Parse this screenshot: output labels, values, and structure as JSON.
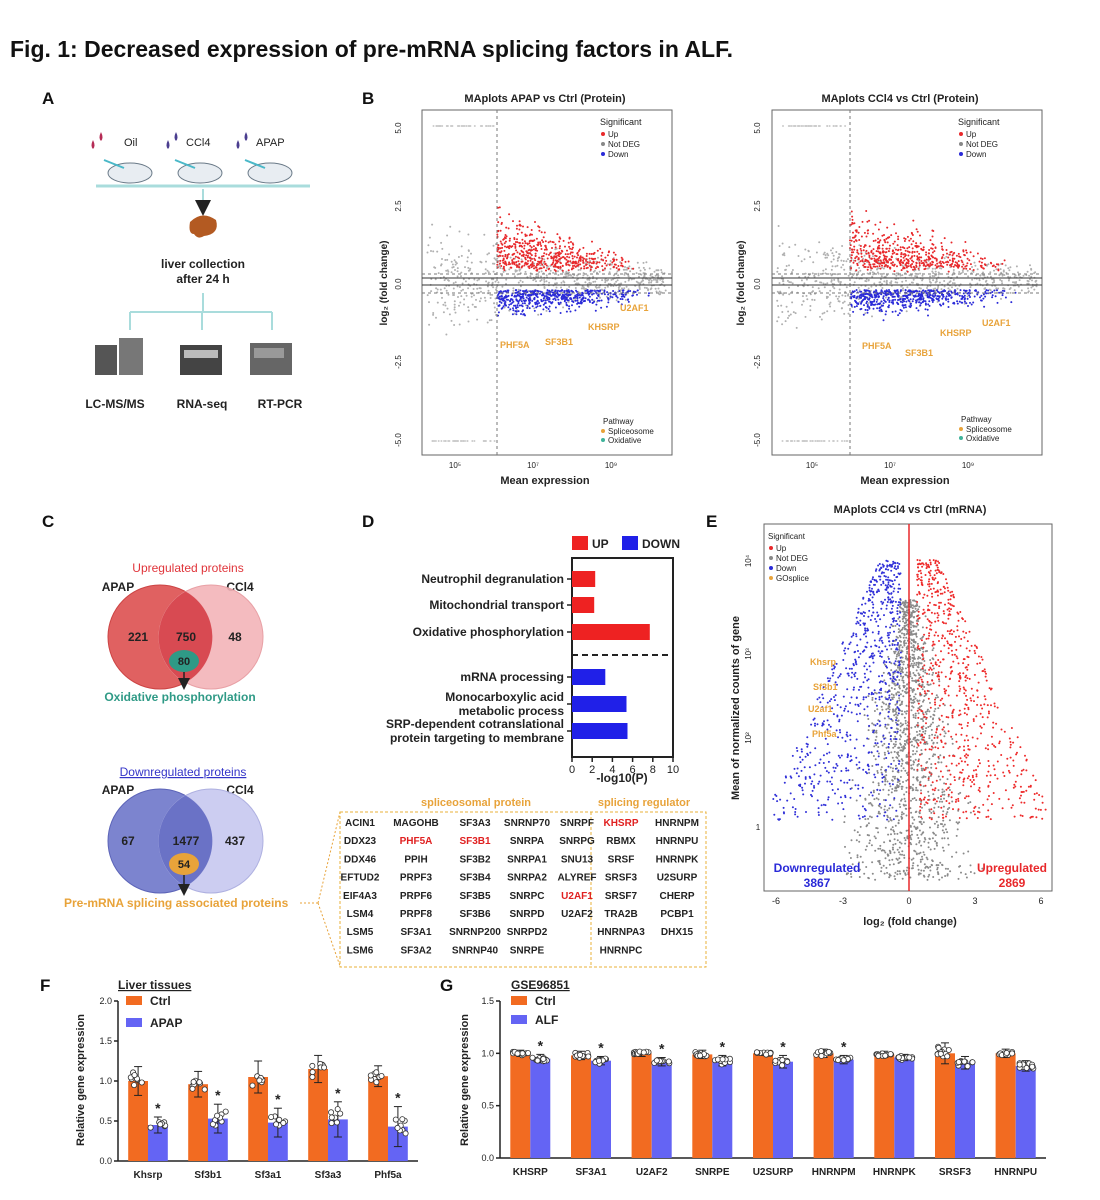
{
  "figure_title": "Fig. 1: Decreased expression of pre-mRNA splicing factors in ALF.",
  "panels": {
    "A": "A",
    "B": "B",
    "C": "C",
    "D": "D",
    "E": "E",
    "F": "F",
    "G": "G"
  },
  "panel_a": {
    "treatments": [
      "Oil",
      "CCl4",
      "APAP"
    ],
    "collection": [
      "liver collection",
      "after 24 h"
    ],
    "methods": [
      "LC-MS/MS",
      "RNA-seq",
      "RT-PCR"
    ]
  },
  "panel_b": {
    "plots": [
      {
        "title": "MAplots APAP vs Ctrl (Protein)",
        "genes": [
          "U2AF1",
          "KHSRP",
          "PHF5A",
          "SF3B1"
        ]
      },
      {
        "title": "MAplots CCl4 vs Ctrl (Protein)",
        "genes": [
          "U2AF1",
          "KHSRP",
          "PHF5A",
          "SF3B1"
        ]
      }
    ],
    "ylabel": "log₂ (fold change)",
    "xlabel": "Mean expression",
    "yticks": [
      "5.0",
      "2.5",
      "0.0",
      "-2.5",
      "-5.0"
    ],
    "xticks": [
      "10⁵",
      "10⁷",
      "10⁹"
    ],
    "legend_title": "Significant",
    "legend_items": [
      "Up",
      "Not DEG",
      "Down"
    ],
    "pathway_title": "Pathway",
    "pathway_items": [
      "Spliceosome",
      "Oxidative"
    ],
    "colors": {
      "up": "#e8282b",
      "down": "#2a2ad8",
      "notdeg": "#b0b0b0",
      "splice": "#e8a33a",
      "oxid": "#3fb39a"
    }
  },
  "panel_c": {
    "up": {
      "title": "Upregulated proteins",
      "left_label": "APAP",
      "right_label": "CCl4",
      "left": "221",
      "middle": "750",
      "right": "48",
      "sub": "80",
      "annotation": "Oxidative phosphorylation"
    },
    "down": {
      "title": "Downregulated proteins",
      "left_label": "APAP",
      "right_label": "CCl4",
      "left": "67",
      "middle": "1477",
      "right": "437",
      "sub": "54",
      "annotation": "Pre-mRNA splicing associated proteins"
    }
  },
  "chart_data": [
    {
      "type": "bar",
      "title": "",
      "legend": [
        "UP",
        "DOWN"
      ],
      "categories": [
        "Neutrophil degranulation",
        "Mitochondrial transport",
        "Oxidative phosphorylation",
        "mRNA processing",
        "Monocarboxylic acid metabolic process",
        "SRP-dependent cotranslational protein targeting to membrane"
      ],
      "values": [
        2.3,
        2.2,
        7.7,
        3.3,
        5.4,
        5.5
      ],
      "groups": [
        "UP",
        "UP",
        "UP",
        "DOWN",
        "DOWN",
        "DOWN"
      ],
      "xlabel": "-log10(P)",
      "xticks": [
        "0",
        "2",
        "4",
        "6",
        "8",
        "10"
      ],
      "xlim": [
        0,
        10
      ]
    },
    {
      "type": "bar",
      "title": "Liver tissues",
      "categories": [
        "Khsrp",
        "Sf3b1",
        "Sf3a1",
        "Sf3a3",
        "Phf5a"
      ],
      "series": [
        {
          "name": "Ctrl",
          "values": [
            1.0,
            0.96,
            1.05,
            1.15,
            1.06
          ]
        },
        {
          "name": "APAP",
          "values": [
            0.45,
            0.53,
            0.48,
            0.52,
            0.43
          ]
        }
      ],
      "errors": [
        {
          "name": "Ctrl",
          "values": [
            0.18,
            0.16,
            0.2,
            0.17,
            0.13
          ]
        },
        {
          "name": "APAP",
          "values": [
            0.1,
            0.18,
            0.18,
            0.22,
            0.25
          ]
        }
      ],
      "significance": [
        "*",
        "*",
        "*",
        "*",
        "*"
      ],
      "ylabel": "Relative gene expression",
      "yticks": [
        "0.0",
        "0.5",
        "1.0",
        "1.5",
        "2.0"
      ],
      "ylim": [
        0,
        2.0
      ]
    },
    {
      "type": "bar",
      "title": "GSE96851",
      "categories": [
        "KHSRP",
        "SF3A1",
        "U2AF2",
        "SNRPE",
        "U2SURP",
        "HNRNPM",
        "HNRNPK",
        "SRSF3",
        "HNRNPU"
      ],
      "series": [
        {
          "name": "Ctrl",
          "values": [
            1.0,
            0.98,
            1.0,
            0.99,
            1.0,
            1.0,
            0.99,
            1.0,
            1.0
          ]
        },
        {
          "name": "ALF",
          "values": [
            0.95,
            0.93,
            0.92,
            0.93,
            0.92,
            0.94,
            0.96,
            0.91,
            0.88
          ]
        }
      ],
      "errors": [
        {
          "name": "Ctrl",
          "values": [
            0.03,
            0.04,
            0.03,
            0.04,
            0.02,
            0.04,
            0.03,
            0.1,
            0.04
          ]
        },
        {
          "name": "ALF",
          "values": [
            0.04,
            0.04,
            0.04,
            0.05,
            0.06,
            0.04,
            0.03,
            0.06,
            0.05
          ]
        }
      ],
      "significance": [
        "*",
        "*",
        "*",
        "*",
        "*",
        "*",
        "",
        "",
        ""
      ],
      "ylabel": "Relative gene expression",
      "yticks": [
        "0.0",
        "0.5",
        "1.0",
        "1.5"
      ],
      "ylim": [
        0,
        1.5
      ]
    }
  ],
  "panel_d_table": {
    "header_left": "spliceosomal protein",
    "header_right": "splicing regulator",
    "rows": [
      [
        "ACIN1",
        "MAGOHB",
        "SF3A3",
        "SNRNP70",
        "SNRPF",
        "KHSRP",
        "HNRNPM"
      ],
      [
        "DDX23",
        "PHF5A",
        "SF3B1",
        "SNRPA",
        "SNRPG",
        "RBMX",
        "HNRNPU"
      ],
      [
        "DDX46",
        "PPIH",
        "SF3B2",
        "SNRPA1",
        "SNU13",
        "SRSF",
        "HNRNPK"
      ],
      [
        "EFTUD2",
        "PRPF3",
        "SF3B4",
        "SNRPA2",
        "ALYREF",
        "SRSF3",
        "U2SURP"
      ],
      [
        "EIF4A3",
        "PRPF6",
        "SF3B5",
        "SNRPC",
        "U2AF1",
        "SRSF7",
        "CHERP"
      ],
      [
        "LSM4",
        "PRPF8",
        "SF3B6",
        "SNRPD",
        "U2AF2",
        "TRA2B",
        "PCBP1"
      ],
      [
        "LSM5",
        "SF3A1",
        "SNRNP200",
        "SNRPD2",
        "",
        "HNRNPA3",
        "DHX15"
      ],
      [
        "LSM6",
        "SF3A2",
        "SNRNP40",
        "SNRPE",
        "",
        "HNRNPC",
        ""
      ]
    ],
    "highlighted": [
      "KHSRP",
      "PHF5A",
      "SF3B1",
      "U2AF1"
    ]
  },
  "panel_e": {
    "title": "MAplots CCl4 vs Ctrl (mRNA)",
    "legend_title": "Significant",
    "legend_items": [
      "Up",
      "Not DEG",
      "Down",
      "GOsplice"
    ],
    "genes": [
      "Khsrp",
      "Sf3b1",
      "U2af1",
      "Phf5a"
    ],
    "ylabel": "Mean of normalized counts of gene",
    "xlabel": "log₂ (fold change)",
    "xticks": [
      "-6",
      "-3",
      "0",
      "3",
      "6"
    ],
    "yticks": [
      "10⁴",
      "10³",
      "10²",
      "1"
    ],
    "down_label": "Downregulated",
    "down_count": "3867",
    "up_label": "Upregulated",
    "up_count": "2869"
  },
  "panel_f": {
    "legend": [
      "Ctrl",
      "APAP"
    ]
  },
  "panel_g": {
    "legend": [
      "Ctrl",
      "ALF"
    ]
  },
  "colors": {
    "ctrl": "#f26b21",
    "treat": "#6464f4",
    "venn_up_left": "#e06161",
    "venn_up_right": "#f3b4b8",
    "venn_down_left": "#7c84cf",
    "venn_down_right": "#c6c8ef",
    "overlap_up": "#d84a52",
    "overlap_down": "#6a72c6",
    "oxphos": "#2f9a86",
    "splice_orange": "#e8a33a"
  }
}
